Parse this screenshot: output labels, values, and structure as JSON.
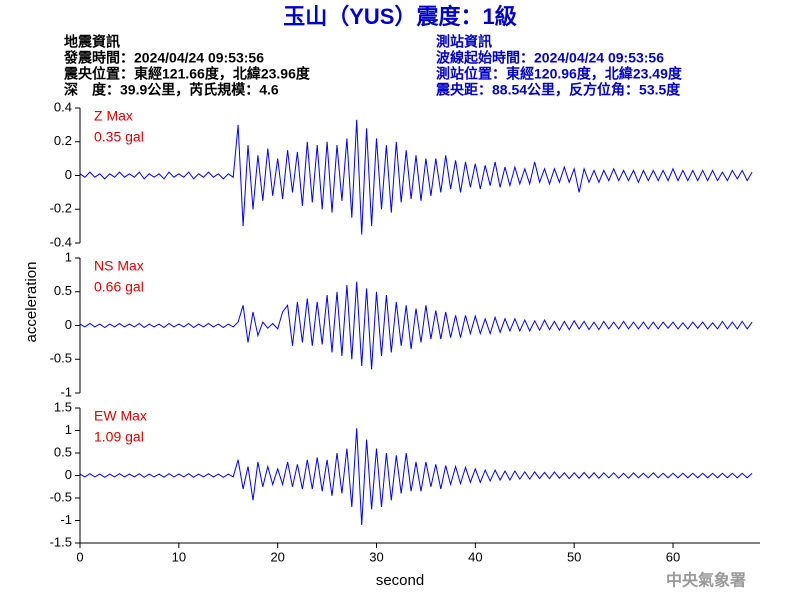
{
  "header": {
    "title": "玉山（YUS）震度：1級",
    "event": [
      "地震資訊",
      "發震時間：2024/04/24 09:53:56",
      "震央位置：東經121.66度，北緯23.96度",
      "深　度：39.9公里，芮氏規模：4.6"
    ],
    "station": [
      "測站資訊",
      "波線起始時間：2024/04/24 09:53:56",
      "測站位置：東經120.96度，北緯23.49度",
      "震央距：88.54公里，反方位角：53.5度"
    ],
    "agency": "中央氣象署"
  },
  "chart_data": {
    "type": "line",
    "xlabel": "second",
    "ylabel": "acceleration",
    "xlim": [
      0,
      68.8
    ],
    "xticks": [
      0,
      10,
      20,
      30,
      40,
      50,
      60
    ],
    "x": [
      0,
      0.5,
      1,
      1.5,
      2,
      2.5,
      3,
      3.5,
      4,
      4.5,
      5,
      5.5,
      6,
      6.5,
      7,
      7.5,
      8,
      8.5,
      9,
      9.5,
      10,
      10.5,
      11,
      11.5,
      12,
      12.5,
      13,
      13.5,
      14,
      14.5,
      15,
      15.5,
      16,
      16.5,
      17,
      17.5,
      18,
      18.5,
      19,
      19.5,
      20,
      20.5,
      21,
      21.5,
      22,
      22.5,
      23,
      23.5,
      24,
      24.5,
      25,
      25.5,
      26,
      26.5,
      27,
      27.5,
      28,
      28.5,
      29,
      29.5,
      30,
      30.5,
      31,
      31.5,
      32,
      32.5,
      33,
      33.5,
      34,
      34.5,
      35,
      35.5,
      36,
      36.5,
      37,
      37.5,
      38,
      38.5,
      39,
      39.5,
      40,
      40.5,
      41,
      41.5,
      42,
      42.5,
      43,
      43.5,
      44,
      44.5,
      45,
      45.5,
      46,
      46.5,
      47,
      47.5,
      48,
      48.5,
      49,
      49.5,
      50,
      50.5,
      51,
      51.5,
      52,
      52.5,
      53,
      53.5,
      54,
      54.5,
      55,
      55.5,
      56,
      56.5,
      57,
      57.5,
      58,
      58.5,
      59,
      59.5,
      60,
      60.5,
      61,
      61.5,
      62,
      62.5,
      63,
      63.5,
      64,
      64.5,
      65,
      65.5,
      66,
      66.5,
      67,
      67.5,
      68
    ],
    "panels": [
      {
        "label": "Z Max",
        "max": "0.35 gal",
        "color": "#0000ff",
        "ylim": [
          -0.4,
          0.4
        ],
        "yticks": [
          -0.4,
          -0.2,
          0,
          0.2,
          0.4
        ],
        "values": [
          0.01,
          -0.01,
          0.02,
          -0.01,
          0.01,
          -0.02,
          0.01,
          -0.01,
          0.02,
          -0.01,
          0.01,
          -0.01,
          0.02,
          -0.02,
          0.01,
          -0.01,
          0.01,
          -0.02,
          0.02,
          -0.01,
          0.01,
          -0.01,
          0.02,
          -0.02,
          0.01,
          -0.01,
          0.02,
          -0.01,
          0.01,
          -0.02,
          0.01,
          -0.01,
          0.3,
          -0.3,
          0.18,
          -0.2,
          0.12,
          -0.15,
          0.16,
          -0.12,
          0.1,
          -0.14,
          0.15,
          -0.1,
          0.14,
          -0.18,
          0.2,
          -0.16,
          0.18,
          -0.2,
          0.2,
          -0.22,
          0.18,
          -0.15,
          0.22,
          -0.25,
          0.33,
          -0.35,
          0.28,
          -0.3,
          0.22,
          -0.2,
          0.18,
          -0.22,
          0.2,
          -0.16,
          0.15,
          -0.14,
          0.12,
          -0.15,
          0.1,
          -0.12,
          0.1,
          -0.1,
          0.12,
          -0.08,
          0.09,
          -0.1,
          0.08,
          -0.07,
          0.07,
          -0.08,
          0.06,
          -0.06,
          0.08,
          -0.07,
          0.05,
          -0.06,
          0.05,
          -0.05,
          0.04,
          -0.05,
          0.08,
          -0.04,
          0.04,
          -0.05,
          0.04,
          -0.04,
          0.05,
          -0.04,
          0.04,
          -0.1,
          0.04,
          -0.04,
          0.03,
          -0.04,
          0.03,
          -0.03,
          0.04,
          -0.03,
          0.03,
          -0.03,
          0.03,
          -0.04,
          0.03,
          -0.03,
          0.03,
          -0.03,
          0.03,
          -0.03,
          0.04,
          -0.03,
          0.03,
          -0.03,
          0.03,
          -0.03,
          0.03,
          -0.03,
          0.03,
          -0.03,
          0.02,
          -0.03,
          0.03,
          -0.02,
          0.03,
          -0.03,
          0.02
        ]
      },
      {
        "label": "NS Max",
        "max": "0.66 gal",
        "color": "#0000ff",
        "ylim": [
          -1,
          1
        ],
        "yticks": [
          -1,
          -0.5,
          0,
          0.5,
          1
        ],
        "values": [
          0.02,
          -0.02,
          0.03,
          -0.02,
          0.02,
          -0.03,
          0.02,
          -0.02,
          0.03,
          -0.02,
          0.02,
          -0.02,
          0.03,
          -0.03,
          0.02,
          -0.02,
          0.02,
          -0.03,
          0.03,
          -0.02,
          0.02,
          -0.02,
          0.03,
          -0.03,
          0.02,
          -0.02,
          0.03,
          -0.02,
          0.02,
          -0.03,
          0.02,
          -0.02,
          0.05,
          0.3,
          -0.25,
          0.2,
          -0.15,
          0.05,
          -0.04,
          0.03,
          -0.05,
          0.2,
          0.3,
          -0.3,
          0.35,
          -0.25,
          0.4,
          -0.3,
          0.35,
          -0.28,
          0.45,
          -0.4,
          0.5,
          -0.45,
          0.6,
          -0.5,
          0.65,
          -0.6,
          0.55,
          -0.65,
          0.5,
          -0.45,
          0.45,
          -0.4,
          0.35,
          -0.3,
          0.3,
          -0.35,
          0.25,
          -0.25,
          0.3,
          -0.2,
          0.22,
          -0.2,
          0.2,
          -0.18,
          0.15,
          -0.18,
          0.15,
          -0.12,
          0.14,
          -0.12,
          0.1,
          -0.12,
          0.12,
          -0.1,
          0.1,
          -0.08,
          0.1,
          -0.08,
          0.08,
          -0.08,
          0.07,
          -0.07,
          0.08,
          -0.06,
          0.06,
          -0.07,
          0.06,
          -0.06,
          0.07,
          -0.05,
          0.06,
          -0.06,
          0.05,
          -0.06,
          0.06,
          -0.05,
          0.05,
          -0.05,
          0.06,
          -0.05,
          0.05,
          -0.05,
          0.05,
          -0.05,
          0.05,
          -0.05,
          0.05,
          -0.04,
          0.05,
          -0.05,
          0.04,
          -0.05,
          0.05,
          -0.04,
          0.05,
          -0.05,
          0.04,
          -0.05,
          0.06,
          -0.05,
          0.05,
          -0.05,
          0.06,
          -0.05,
          0.05
        ]
      },
      {
        "label": "EW Max",
        "max": "1.09 gal",
        "color": "#0000ff",
        "ylim": [
          -1.5,
          1.5
        ],
        "yticks": [
          -1.5,
          -1,
          -0.5,
          0,
          0.5,
          1,
          1.5
        ],
        "values": [
          0.03,
          -0.03,
          0.04,
          -0.03,
          0.03,
          -0.04,
          0.03,
          -0.03,
          0.04,
          -0.03,
          0.03,
          -0.03,
          0.04,
          -0.04,
          0.03,
          -0.03,
          0.03,
          -0.04,
          0.04,
          -0.03,
          0.03,
          -0.03,
          0.04,
          -0.04,
          0.03,
          -0.03,
          0.04,
          -0.03,
          0.03,
          -0.04,
          0.03,
          -0.03,
          0.35,
          -0.3,
          0.2,
          -0.55,
          0.3,
          -0.25,
          0.2,
          -0.2,
          0.15,
          -0.2,
          0.3,
          -0.25,
          0.25,
          -0.3,
          0.35,
          -0.3,
          0.4,
          -0.35,
          0.35,
          -0.45,
          0.5,
          -0.4,
          0.6,
          -0.7,
          1.05,
          -1.1,
          0.8,
          -0.75,
          0.6,
          -0.7,
          0.5,
          -0.55,
          0.45,
          -0.4,
          0.5,
          -0.35,
          0.3,
          -0.35,
          0.3,
          -0.25,
          0.25,
          -0.3,
          0.22,
          -0.2,
          0.2,
          -0.18,
          0.18,
          -0.15,
          0.15,
          -0.15,
          0.12,
          -0.12,
          0.12,
          -0.1,
          0.1,
          -0.1,
          0.1,
          -0.08,
          0.08,
          -0.08,
          0.08,
          -0.07,
          0.07,
          -0.07,
          0.08,
          -0.06,
          0.06,
          -0.07,
          0.06,
          -0.06,
          0.07,
          -0.06,
          0.06,
          -0.06,
          0.06,
          -0.05,
          0.06,
          -0.06,
          0.05,
          -0.06,
          0.06,
          -0.05,
          0.05,
          -0.05,
          0.06,
          -0.05,
          0.05,
          -0.05,
          0.05,
          -0.05,
          0.05,
          -0.05,
          0.05,
          -0.05,
          0.05,
          -0.05,
          0.05,
          -0.05,
          0.05,
          -0.05,
          0.05,
          -0.05,
          0.05,
          -0.05,
          0.05
        ]
      }
    ]
  }
}
